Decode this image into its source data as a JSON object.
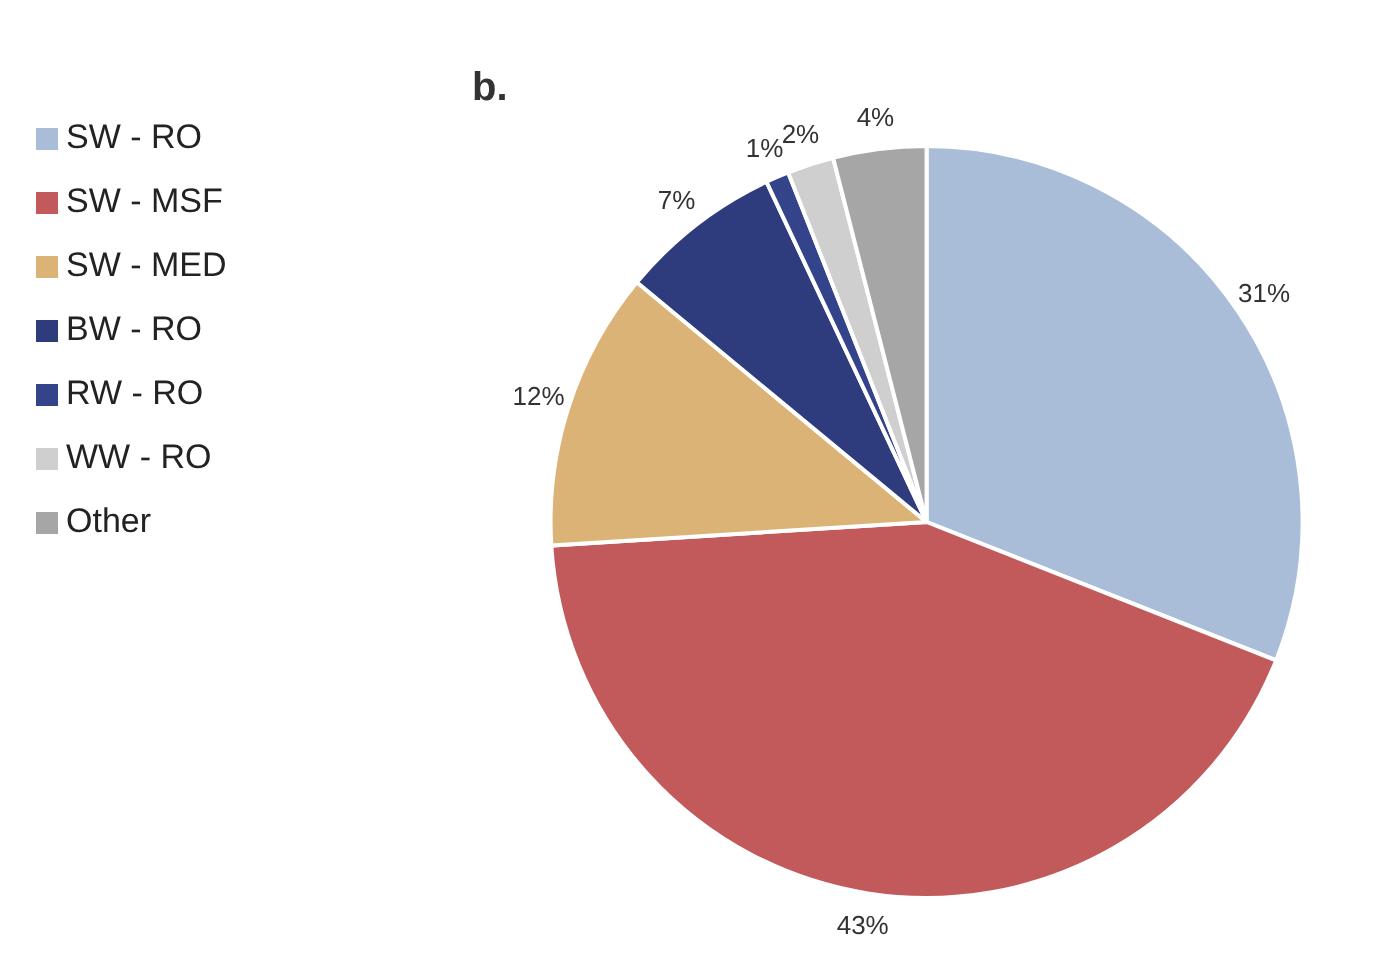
{
  "chart_data": {
    "type": "pie",
    "title": "b.",
    "categories": [
      "SW - RO",
      "SW - MSF",
      "SW - MED",
      "BW - RO",
      "RW - RO",
      "WW - RO",
      "Other"
    ],
    "values": [
      31,
      43,
      12,
      7,
      1,
      2,
      4
    ],
    "colors": [
      "#aabdd8",
      "#c25a5c",
      "#dcb377",
      "#2e3c7e",
      "#34448a",
      "#cfcfcf",
      "#a6a6a6"
    ],
    "value_labels": [
      "31%",
      "43%",
      "12%",
      "7%",
      "1%",
      "2%",
      "4%"
    ],
    "legend": "left"
  }
}
